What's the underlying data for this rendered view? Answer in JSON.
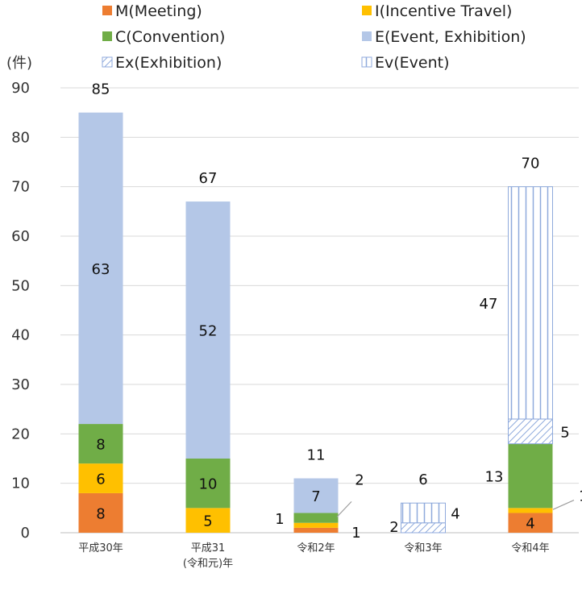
{
  "chart_data": {
    "type": "bar",
    "stacked": true,
    "ylabel": "(件)",
    "ylim": [
      0,
      90
    ],
    "yticks": [
      "0",
      "10",
      "20",
      "30",
      "40",
      "50",
      "60",
      "70",
      "80",
      "90"
    ],
    "grid": true,
    "legend_position": "top",
    "categories": [
      "平成30年",
      "平成31\n(令和元)年",
      "令和2年",
      "令和3年",
      "令和4年"
    ],
    "category_lines": [
      [
        "平成30年"
      ],
      [
        "平成31",
        "(令和元)年"
      ],
      [
        "令和2年"
      ],
      [
        "令和3年"
      ],
      [
        "令和4年"
      ]
    ],
    "series": [
      {
        "name": "M(Meeting)",
        "key": "M",
        "color": "#ED7D31",
        "pattern": "solid",
        "values": [
          8,
          0,
          1,
          0,
          4
        ]
      },
      {
        "name": "I(Incentive Travel)",
        "key": "I",
        "color": "#FFC000",
        "pattern": "solid",
        "values": [
          6,
          5,
          1,
          0,
          1
        ]
      },
      {
        "name": "C(Convention)",
        "key": "C",
        "color": "#70AD47",
        "pattern": "solid",
        "values": [
          8,
          10,
          2,
          0,
          13
        ]
      },
      {
        "name": "E(Event, Exhibition)",
        "key": "E",
        "color": "#B4C7E7",
        "pattern": "solid",
        "values": [
          63,
          52,
          7,
          0,
          0
        ]
      },
      {
        "name": "Ex(Exhibition)",
        "key": "Ex",
        "color": "#8FAADC",
        "pattern": "diagonal",
        "values": [
          0,
          0,
          0,
          2,
          5
        ]
      },
      {
        "name": "Ev(Event)",
        "key": "Ev",
        "color": "#8FAADC",
        "pattern": "vertical",
        "values": [
          0,
          0,
          0,
          4,
          47
        ]
      }
    ],
    "totals": [
      85,
      67,
      11,
      6,
      70
    ],
    "legend_order": [
      "M",
      "I",
      "C",
      "E",
      "Ex",
      "Ev"
    ]
  }
}
